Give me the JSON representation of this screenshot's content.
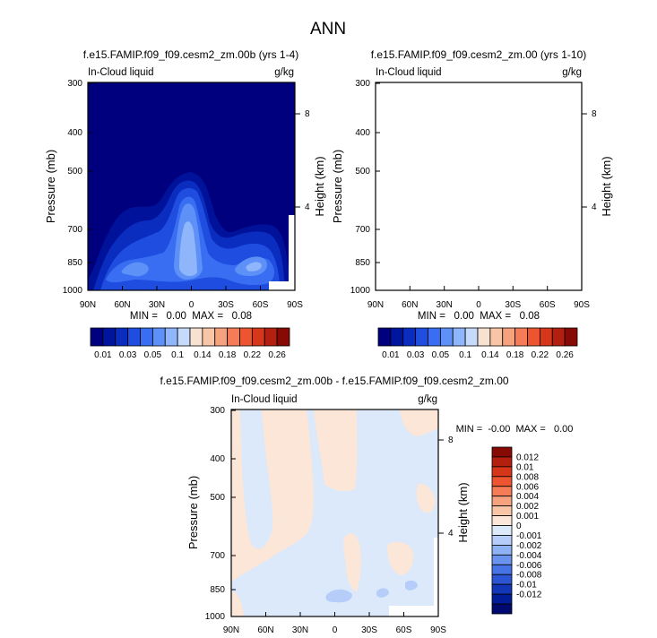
{
  "figure": {
    "title": "ANN"
  },
  "chart_data": [
    {
      "type": "heatmap",
      "title": "f.e15.FAMIP.f09_f09.cesm2_zm.00b (yrs 1-4)",
      "subtitle_left": "In-Cloud liquid",
      "subtitle_right": "g/kg",
      "xlabel": "",
      "ylabel": "Pressure (mb)",
      "ylabel_right": "Height (km)",
      "x_ticks": [
        "90N",
        "60N",
        "30N",
        "0",
        "30S",
        "60S",
        "90S"
      ],
      "y_ticks": [
        300,
        400,
        500,
        700,
        850,
        1000
      ],
      "y_right_ticks": [
        8,
        4
      ],
      "xlim": [
        90,
        -90
      ],
      "ylim": [
        1000,
        300
      ],
      "stats": "MIN =   0.00  MAX =   0.08",
      "field": "ctrl",
      "legend_position": "bottom"
    },
    {
      "type": "heatmap",
      "title": "f.e15.FAMIP.f09_f09.cesm2_zm.00 (yrs 1-10)",
      "subtitle_left": "In-Cloud liquid",
      "subtitle_right": "g/kg",
      "xlabel": "",
      "ylabel": "Pressure (mb)",
      "ylabel_right": "Height (km)",
      "x_ticks": [
        "90N",
        "60N",
        "30N",
        "0",
        "30S",
        "60S",
        "90S"
      ],
      "y_ticks": [
        300,
        400,
        500,
        700,
        850,
        1000
      ],
      "y_right_ticks": [
        8,
        4
      ],
      "xlim": [
        90,
        -90
      ],
      "ylim": [
        1000,
        300
      ],
      "stats": "MIN =   0.00  MAX =   0.08",
      "field": "ctrl",
      "legend_position": "bottom"
    },
    {
      "type": "heatmap",
      "title": "f.e15.FAMIP.f09_f09.cesm2_zm.00b - f.e15.FAMIP.f09_f09.cesm2_zm.00",
      "subtitle_left": "In-Cloud liquid",
      "subtitle_right": "g/kg",
      "xlabel": "",
      "ylabel": "Pressure (mb)",
      "ylabel_right": "Height (km)",
      "x_ticks": [
        "90N",
        "60N",
        "30N",
        "0",
        "30S",
        "60S",
        "90S"
      ],
      "y_ticks": [
        300,
        400,
        500,
        700,
        850,
        1000
      ],
      "y_right_ticks": [
        8,
        4
      ],
      "xlim": [
        90,
        -90
      ],
      "ylim": [
        1000,
        300
      ],
      "stats": "MIN =  -0.00  MAX =   0.00",
      "field": "diff",
      "legend_position": "right"
    }
  ],
  "colorbars": {
    "main": {
      "colors": [
        "#00007f",
        "#00159e",
        "#0a2dc0",
        "#1e4ddf",
        "#3a6ef2",
        "#5e91f8",
        "#8fb5fa",
        "#c6dafc",
        "#f7e2d1",
        "#f8c6a6",
        "#f7a27f",
        "#f47c57",
        "#ec5530",
        "#d6361a",
        "#b3200f",
        "#870a05"
      ],
      "labels": [
        "0.01",
        "0.03",
        "0.05",
        "0.1",
        "0.14",
        "0.18",
        "0.22",
        "0.26"
      ]
    },
    "diff": {
      "colors": [
        "#870a05",
        "#b3200f",
        "#d6361a",
        "#ec5530",
        "#f47c57",
        "#f7a27f",
        "#f8c6a6",
        "#fbe6d8",
        "#dbe9fb",
        "#b5cdf8",
        "#8fb2f4",
        "#6a93ef",
        "#4673e5",
        "#2b55d3",
        "#1136b8",
        "#001c96",
        "#000a6e"
      ],
      "labels": [
        "0.012",
        "0.01",
        "0.008",
        "0.006",
        "0.004",
        "0.002",
        "0.001",
        "0",
        "-0.001",
        "-0.002",
        "-0.004",
        "-0.006",
        "-0.008",
        "-0.01",
        "-0.012"
      ]
    }
  }
}
